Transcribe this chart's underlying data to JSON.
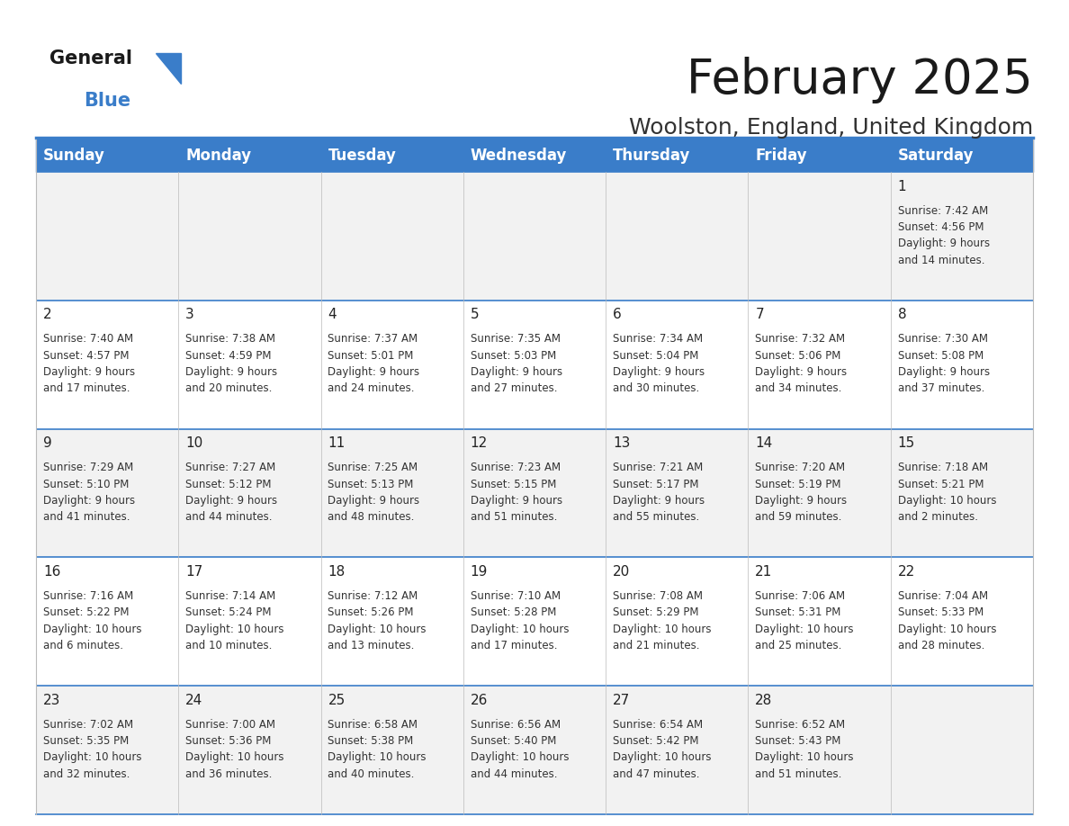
{
  "title": "February 2025",
  "subtitle": "Woolston, England, United Kingdom",
  "header_color": "#3A7DC9",
  "header_text_color": "#FFFFFF",
  "cell_bg_even": "#F2F2F2",
  "cell_bg_odd": "#FFFFFF",
  "border_color": "#3A7DC9",
  "text_color": "#333333",
  "day_headers": [
    "Sunday",
    "Monday",
    "Tuesday",
    "Wednesday",
    "Thursday",
    "Friday",
    "Saturday"
  ],
  "title_fontsize": 38,
  "subtitle_fontsize": 18,
  "header_fontsize": 12,
  "day_num_fontsize": 11,
  "info_fontsize": 8.5,
  "calendar": [
    [
      null,
      null,
      null,
      null,
      null,
      null,
      {
        "day": 1,
        "sunrise": "7:42 AM",
        "sunset": "4:56 PM",
        "daylight": "9 hours and 14 minutes."
      }
    ],
    [
      {
        "day": 2,
        "sunrise": "7:40 AM",
        "sunset": "4:57 PM",
        "daylight": "9 hours and 17 minutes."
      },
      {
        "day": 3,
        "sunrise": "7:38 AM",
        "sunset": "4:59 PM",
        "daylight": "9 hours and 20 minutes."
      },
      {
        "day": 4,
        "sunrise": "7:37 AM",
        "sunset": "5:01 PM",
        "daylight": "9 hours and 24 minutes."
      },
      {
        "day": 5,
        "sunrise": "7:35 AM",
        "sunset": "5:03 PM",
        "daylight": "9 hours and 27 minutes."
      },
      {
        "day": 6,
        "sunrise": "7:34 AM",
        "sunset": "5:04 PM",
        "daylight": "9 hours and 30 minutes."
      },
      {
        "day": 7,
        "sunrise": "7:32 AM",
        "sunset": "5:06 PM",
        "daylight": "9 hours and 34 minutes."
      },
      {
        "day": 8,
        "sunrise": "7:30 AM",
        "sunset": "5:08 PM",
        "daylight": "9 hours and 37 minutes."
      }
    ],
    [
      {
        "day": 9,
        "sunrise": "7:29 AM",
        "sunset": "5:10 PM",
        "daylight": "9 hours and 41 minutes."
      },
      {
        "day": 10,
        "sunrise": "7:27 AM",
        "sunset": "5:12 PM",
        "daylight": "9 hours and 44 minutes."
      },
      {
        "day": 11,
        "sunrise": "7:25 AM",
        "sunset": "5:13 PM",
        "daylight": "9 hours and 48 minutes."
      },
      {
        "day": 12,
        "sunrise": "7:23 AM",
        "sunset": "5:15 PM",
        "daylight": "9 hours and 51 minutes."
      },
      {
        "day": 13,
        "sunrise": "7:21 AM",
        "sunset": "5:17 PM",
        "daylight": "9 hours and 55 minutes."
      },
      {
        "day": 14,
        "sunrise": "7:20 AM",
        "sunset": "5:19 PM",
        "daylight": "9 hours and 59 minutes."
      },
      {
        "day": 15,
        "sunrise": "7:18 AM",
        "sunset": "5:21 PM",
        "daylight": "10 hours and 2 minutes."
      }
    ],
    [
      {
        "day": 16,
        "sunrise": "7:16 AM",
        "sunset": "5:22 PM",
        "daylight": "10 hours and 6 minutes."
      },
      {
        "day": 17,
        "sunrise": "7:14 AM",
        "sunset": "5:24 PM",
        "daylight": "10 hours and 10 minutes."
      },
      {
        "day": 18,
        "sunrise": "7:12 AM",
        "sunset": "5:26 PM",
        "daylight": "10 hours and 13 minutes."
      },
      {
        "day": 19,
        "sunrise": "7:10 AM",
        "sunset": "5:28 PM",
        "daylight": "10 hours and 17 minutes."
      },
      {
        "day": 20,
        "sunrise": "7:08 AM",
        "sunset": "5:29 PM",
        "daylight": "10 hours and 21 minutes."
      },
      {
        "day": 21,
        "sunrise": "7:06 AM",
        "sunset": "5:31 PM",
        "daylight": "10 hours and 25 minutes."
      },
      {
        "day": 22,
        "sunrise": "7:04 AM",
        "sunset": "5:33 PM",
        "daylight": "10 hours and 28 minutes."
      }
    ],
    [
      {
        "day": 23,
        "sunrise": "7:02 AM",
        "sunset": "5:35 PM",
        "daylight": "10 hours and 32 minutes."
      },
      {
        "day": 24,
        "sunrise": "7:00 AM",
        "sunset": "5:36 PM",
        "daylight": "10 hours and 36 minutes."
      },
      {
        "day": 25,
        "sunrise": "6:58 AM",
        "sunset": "5:38 PM",
        "daylight": "10 hours and 40 minutes."
      },
      {
        "day": 26,
        "sunrise": "6:56 AM",
        "sunset": "5:40 PM",
        "daylight": "10 hours and 44 minutes."
      },
      {
        "day": 27,
        "sunrise": "6:54 AM",
        "sunset": "5:42 PM",
        "daylight": "10 hours and 47 minutes."
      },
      {
        "day": 28,
        "sunrise": "6:52 AM",
        "sunset": "5:43 PM",
        "daylight": "10 hours and 51 minutes."
      },
      null
    ]
  ]
}
